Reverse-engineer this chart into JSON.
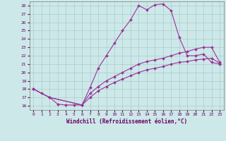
{
  "xlabel": "Windchill (Refroidissement éolien,°C)",
  "bg_color": "#cde8e8",
  "line_color": "#993399",
  "grid_color": "#aacccc",
  "xlim": [
    -0.5,
    23.5
  ],
  "ylim": [
    15.5,
    28.5
  ],
  "yticks": [
    16,
    17,
    18,
    19,
    20,
    21,
    22,
    23,
    24,
    25,
    26,
    27,
    28
  ],
  "xticks": [
    0,
    1,
    2,
    3,
    4,
    5,
    6,
    7,
    8,
    9,
    10,
    11,
    12,
    13,
    14,
    15,
    16,
    17,
    18,
    19,
    20,
    21,
    22,
    23
  ],
  "line1_x": [
    0,
    1,
    2,
    3,
    4,
    5,
    6,
    7,
    8,
    9,
    10,
    11,
    12,
    13,
    14,
    15,
    16,
    17,
    18,
    19,
    20,
    21,
    22,
    23
  ],
  "line1_y": [
    18.0,
    17.5,
    17.0,
    16.2,
    16.1,
    16.1,
    16.1,
    18.2,
    20.5,
    22.0,
    23.5,
    25.0,
    26.3,
    28.0,
    27.5,
    28.1,
    28.2,
    27.4,
    24.2,
    22.0,
    22.0,
    22.2,
    21.2,
    21.0
  ],
  "line2_x": [
    0,
    2,
    6,
    7,
    8,
    9,
    10,
    11,
    12,
    13,
    14,
    15,
    16,
    17,
    18,
    19,
    20,
    21,
    22,
    23
  ],
  "line2_y": [
    18.0,
    17.0,
    16.1,
    17.5,
    18.3,
    19.0,
    19.5,
    20.0,
    20.5,
    21.0,
    21.3,
    21.5,
    21.7,
    22.0,
    22.3,
    22.5,
    22.8,
    23.0,
    23.0,
    21.2
  ],
  "line3_x": [
    0,
    2,
    6,
    7,
    8,
    9,
    10,
    11,
    12,
    13,
    14,
    15,
    16,
    17,
    18,
    19,
    20,
    21,
    22,
    23
  ],
  "line3_y": [
    18.0,
    17.0,
    16.1,
    17.0,
    17.8,
    18.3,
    18.8,
    19.2,
    19.6,
    20.0,
    20.3,
    20.5,
    20.7,
    21.0,
    21.2,
    21.3,
    21.5,
    21.6,
    21.7,
    21.1
  ]
}
